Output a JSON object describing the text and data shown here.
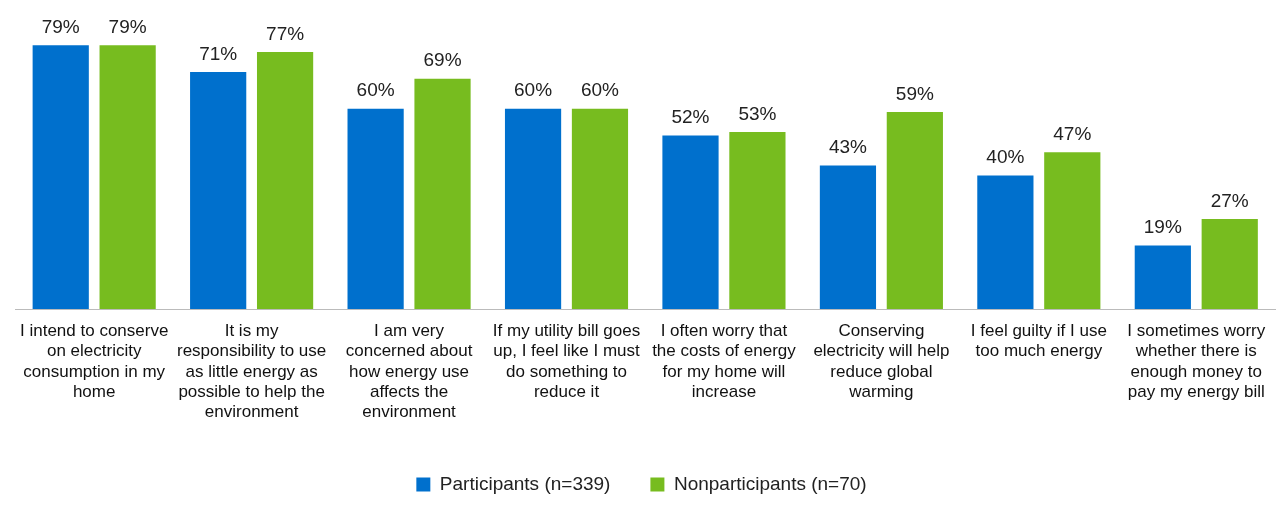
{
  "chart_data": {
    "type": "bar",
    "categories": [
      "I intend to conserve on electricity consumption in my home",
      "It is my responsibility to use as little energy as possible to help the environment",
      "I am very concerned about how energy use affects the environment",
      "If my utility bill goes up, I feel like I must do something to reduce it",
      "I often worry that the costs of energy for my home will increase",
      "Conserving electricity will help reduce global warming",
      "I feel guilty if I use too much energy",
      "I sometimes worry whether there is enough money to pay my energy bill"
    ],
    "series": [
      {
        "name": "Participants (n=339)",
        "color": "#0070cd",
        "values": [
          79,
          71,
          60,
          60,
          52,
          43,
          40,
          19
        ],
        "value_labels": [
          "79%",
          "71%",
          "60%",
          "60%",
          "52%",
          "43%",
          "40%",
          "19%"
        ]
      },
      {
        "name": "Nonparticipants (n=70)",
        "color": "#77bc1f",
        "values": [
          79,
          77,
          69,
          60,
          53,
          59,
          47,
          27
        ],
        "value_labels": [
          "79%",
          "77%",
          "69%",
          "60%",
          "53%",
          "59%",
          "47%",
          "27%"
        ]
      }
    ],
    "legend": "bottom",
    "grid": false
  }
}
